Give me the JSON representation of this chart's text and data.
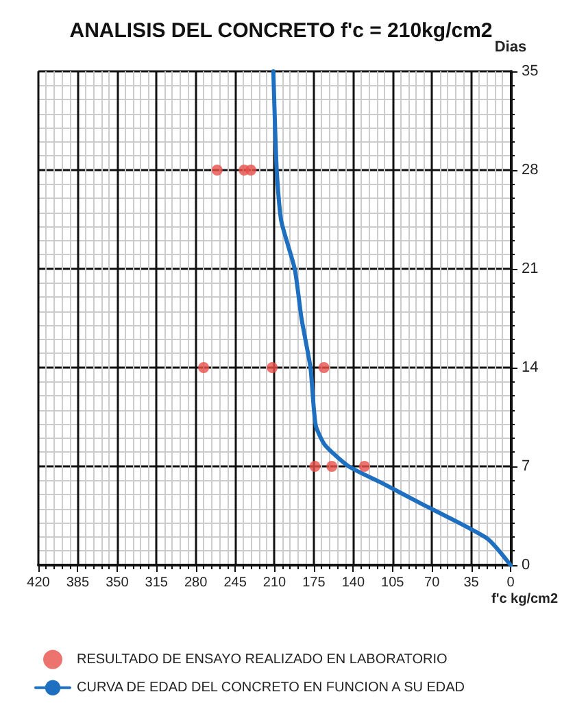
{
  "chart_data": {
    "type": "scatter",
    "title": "ANALISIS DEL CONCRETO f'c = 210kg/cm2",
    "xlabel": "f'c kg/cm2",
    "ylabel": "Dias",
    "xlim": [
      420,
      0
    ],
    "xticks": [
      420,
      385,
      350,
      315,
      280,
      245,
      210,
      175,
      140,
      105,
      70,
      35,
      0
    ],
    "ylim": [
      0,
      35
    ],
    "yticks": [
      0,
      7,
      14,
      21,
      28,
      35
    ],
    "grid": true,
    "legend": "bottom",
    "series": [
      {
        "name": "RESULTADO DE ENSAYO REALIZADO EN LABORATORIO",
        "marker": "circle",
        "color": "#e8514a",
        "x": [
          174,
          159,
          130,
          273,
          212,
          166,
          261,
          237,
          231
        ],
        "values": [
          7,
          7,
          7,
          14,
          14,
          14,
          28,
          28,
          28
        ]
      },
      {
        "name": "CURVA DE EDAD DEL CONCRETO EN FUNCION A SU EDAD",
        "type": "line",
        "marker": "none",
        "color": "#1f6fc0",
        "x": [
          0,
          21,
          83,
          114,
          144,
          165,
          173,
          175,
          178,
          186,
          192,
          204,
          208,
          211
        ],
        "values": [
          0,
          1.9,
          4.5,
          5.8,
          7,
          8.5,
          9.8,
          11.1,
          14,
          17.5,
          21,
          24.4,
          28,
          35
        ]
      }
    ]
  }
}
